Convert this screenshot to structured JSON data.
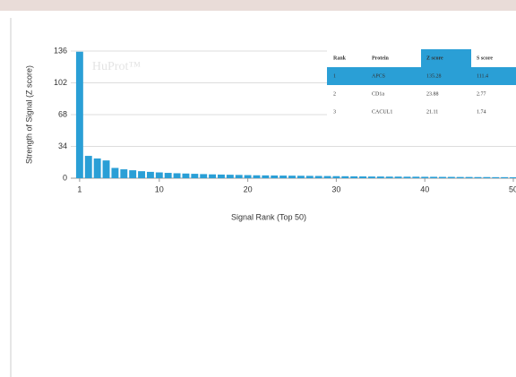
{
  "chart_data": {
    "type": "bar",
    "watermark": "HuProt™",
    "x_label": "Signal Rank (Top 50)",
    "y_label": "Strength of Signal (Z score)",
    "x": [
      1,
      2,
      3,
      4,
      5,
      6,
      7,
      8,
      9,
      10,
      11,
      12,
      13,
      14,
      15,
      16,
      17,
      18,
      19,
      20,
      21,
      22,
      23,
      24,
      25,
      26,
      27,
      28,
      29,
      30,
      31,
      32,
      33,
      34,
      35,
      36,
      37,
      38,
      39,
      40,
      41,
      42,
      43,
      44,
      45,
      46,
      47,
      48,
      49,
      50
    ],
    "values": [
      135.28,
      23.88,
      21.11,
      19,
      11,
      9.5,
      8.5,
      7.5,
      6.8,
      6.2,
      5.7,
      5.3,
      5,
      4.7,
      4.4,
      4.1,
      3.9,
      3.7,
      3.5,
      3.3,
      3.1,
      3,
      2.9,
      2.8,
      2.7,
      2.6,
      2.5,
      2.4,
      2.3,
      2.2,
      2.1,
      2,
      1.9,
      1.8,
      1.8,
      1.7,
      1.7,
      1.6,
      1.6,
      1.5,
      1.5,
      1.4,
      1.4,
      1.3,
      1.3,
      1.2,
      1.2,
      1.1,
      1.1,
      1
    ],
    "color": "#2a9fd6",
    "xlim": [
      0,
      50
    ],
    "xticks": [
      1,
      10,
      20,
      30,
      40,
      50
    ],
    "ylim": [
      0,
      136
    ],
    "yticks": [
      0,
      34,
      68,
      102,
      136
    ],
    "grid": true,
    "table": {
      "columns": [
        "Rank",
        "Protein",
        "Z score",
        "S score"
      ],
      "rows": [
        [
          1,
          "APCS",
          135.28,
          111.4
        ],
        [
          2,
          "CD1a",
          23.88,
          2.77
        ],
        [
          3,
          "CACUL1",
          21.11,
          1.74
        ]
      ]
    }
  }
}
